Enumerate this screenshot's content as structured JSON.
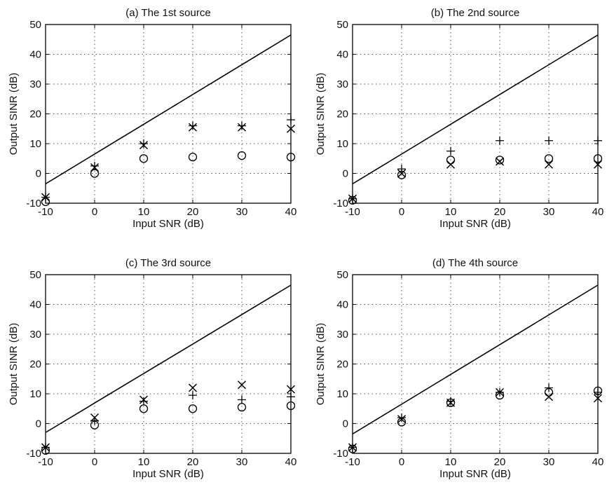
{
  "chart_data": [
    {
      "type": "scatter",
      "title": "(a) The 1st source",
      "xlabel": "Input SNR (dB)",
      "ylabel": "Output SINR (dB)",
      "xlim": [
        -10,
        40
      ],
      "ylim": [
        -10,
        50
      ],
      "xticks": [
        "-10",
        "0",
        "10",
        "20",
        "30",
        "40"
      ],
      "yticks": [
        "-10",
        "0",
        "10",
        "20",
        "30",
        "40",
        "50"
      ],
      "grid": true,
      "legend": "none",
      "series": [
        {
          "marker": "line",
          "x": [
            -10,
            40
          ],
          "y": [
            -3.5,
            46.5
          ]
        },
        {
          "marker": "plus",
          "x": [
            -10,
            0,
            10,
            20,
            30,
            40
          ],
          "y": [
            -8,
            2.5,
            10,
            16,
            16,
            18
          ]
        },
        {
          "marker": "cross",
          "x": [
            -10,
            0,
            10,
            20,
            30,
            40
          ],
          "y": [
            -8,
            2,
            9.5,
            15.5,
            15.5,
            15
          ]
        },
        {
          "marker": "circle",
          "x": [
            -10,
            0,
            10,
            20,
            30,
            40
          ],
          "y": [
            -9.5,
            0,
            5,
            5.5,
            6,
            5.5
          ]
        }
      ]
    },
    {
      "type": "scatter",
      "title": "(b) The 2nd source",
      "xlabel": "Input SNR (dB)",
      "ylabel": "Output SINR (dB)",
      "xlim": [
        -10,
        40
      ],
      "ylim": [
        -10,
        50
      ],
      "xticks": [
        "-10",
        "0",
        "10",
        "20",
        "30",
        "40"
      ],
      "yticks": [
        "-10",
        "0",
        "10",
        "20",
        "30",
        "40",
        "50"
      ],
      "grid": true,
      "legend": "none",
      "series": [
        {
          "marker": "line",
          "x": [
            -10,
            40
          ],
          "y": [
            -3.5,
            46.5
          ]
        },
        {
          "marker": "plus",
          "x": [
            -10,
            0,
            10,
            20,
            30,
            40
          ],
          "y": [
            -8.5,
            1.5,
            7.5,
            11,
            11,
            11
          ]
        },
        {
          "marker": "cross",
          "x": [
            -10,
            0,
            10,
            20,
            30,
            40
          ],
          "y": [
            -8.5,
            0,
            3,
            4,
            3,
            3
          ]
        },
        {
          "marker": "circle",
          "x": [
            -10,
            0,
            10,
            20,
            30,
            40
          ],
          "y": [
            -9,
            -0.5,
            4.5,
            4.5,
            5,
            5
          ]
        }
      ]
    },
    {
      "type": "scatter",
      "title": "(c) The 3rd source",
      "xlabel": "Input SNR (dB)",
      "ylabel": "Output SINR (dB)",
      "xlim": [
        -10,
        40
      ],
      "ylim": [
        -10,
        50
      ],
      "xticks": [
        "-10",
        "0",
        "10",
        "20",
        "30",
        "40"
      ],
      "yticks": [
        "-10",
        "0",
        "10",
        "20",
        "30",
        "40",
        "50"
      ],
      "grid": true,
      "legend": "none",
      "series": [
        {
          "marker": "line",
          "x": [
            -10,
            40
          ],
          "y": [
            -3,
            46.5
          ]
        },
        {
          "marker": "plus",
          "x": [
            -10,
            0,
            10,
            20,
            30,
            40
          ],
          "y": [
            -8,
            1,
            7.5,
            9.5,
            8,
            9
          ]
        },
        {
          "marker": "cross",
          "x": [
            -10,
            0,
            10,
            20,
            30,
            40
          ],
          "y": [
            -8,
            2,
            8,
            12,
            13,
            11.5
          ]
        },
        {
          "marker": "circle",
          "x": [
            -10,
            0,
            10,
            20,
            30,
            40
          ],
          "y": [
            -9,
            -0.5,
            5,
            5,
            5.5,
            6
          ]
        }
      ]
    },
    {
      "type": "scatter",
      "title": "(d) The 4th source",
      "xlabel": "Input SNR (dB)",
      "ylabel": "Output SINR (dB)",
      "xlim": [
        -10,
        40
      ],
      "ylim": [
        -10,
        50
      ],
      "xticks": [
        "-10",
        "0",
        "10",
        "20",
        "30",
        "40"
      ],
      "yticks": [
        "-10",
        "0",
        "10",
        "20",
        "30",
        "40",
        "50"
      ],
      "grid": true,
      "legend": "none",
      "series": [
        {
          "marker": "line",
          "x": [
            -10,
            40
          ],
          "y": [
            -3.5,
            46.5
          ]
        },
        {
          "marker": "plus",
          "x": [
            -10,
            0,
            10,
            20,
            30,
            40
          ],
          "y": [
            -8,
            2,
            7.5,
            10.5,
            12,
            10.5
          ]
        },
        {
          "marker": "cross",
          "x": [
            -10,
            0,
            10,
            20,
            30,
            40
          ],
          "y": [
            -8,
            1.5,
            7,
            10.5,
            9,
            8.5
          ]
        },
        {
          "marker": "circle",
          "x": [
            -10,
            0,
            10,
            20,
            30,
            40
          ],
          "y": [
            -8.5,
            0.5,
            7,
            9.5,
            10.5,
            11
          ]
        }
      ]
    }
  ]
}
